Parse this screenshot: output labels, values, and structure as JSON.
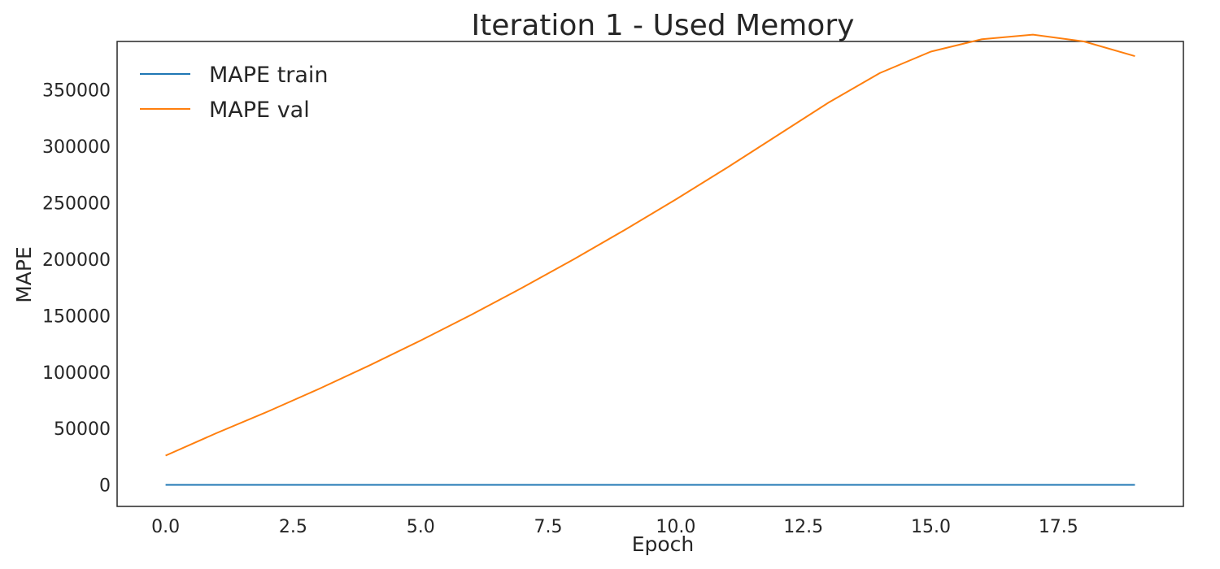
{
  "chart_data": {
    "type": "line",
    "title": "Iteration 1 - Used Memory",
    "xlabel": "Epoch",
    "ylabel": "MAPE",
    "x": [
      0,
      1,
      2,
      3,
      4,
      5,
      6,
      7,
      8,
      9,
      10,
      11,
      12,
      13,
      14,
      15,
      16,
      17,
      18,
      19
    ],
    "xlim": [
      -0.95,
      19.95
    ],
    "ylim": [
      -19000,
      393000
    ],
    "xticks": [
      0.0,
      2.5,
      5.0,
      7.5,
      10.0,
      12.5,
      15.0,
      17.5
    ],
    "xtick_labels": [
      "0.0",
      "2.5",
      "5.0",
      "7.5",
      "10.0",
      "12.5",
      "15.0",
      "17.5"
    ],
    "yticks": [
      0,
      50000,
      100000,
      150000,
      200000,
      250000,
      300000,
      350000
    ],
    "ytick_labels": [
      "0",
      "50000",
      "100000",
      "150000",
      "200000",
      "250000",
      "300000",
      "350000"
    ],
    "grid": false,
    "legend_position": "top-left",
    "series": [
      {
        "name": "MAPE train",
        "color": "#1f77b4",
        "values": [
          100,
          100,
          100,
          100,
          100,
          100,
          100,
          100,
          100,
          100,
          100,
          100,
          100,
          100,
          100,
          100,
          100,
          100,
          100,
          100
        ]
      },
      {
        "name": "MAPE val",
        "color": "#ff7f0e",
        "values": [
          26000,
          46000,
          65000,
          85000,
          106000,
          128000,
          151000,
          175000,
          200000,
          226000,
          253000,
          281000,
          310000,
          339000,
          365000,
          384000,
          395000,
          399000,
          393000,
          380000
        ]
      }
    ]
  }
}
